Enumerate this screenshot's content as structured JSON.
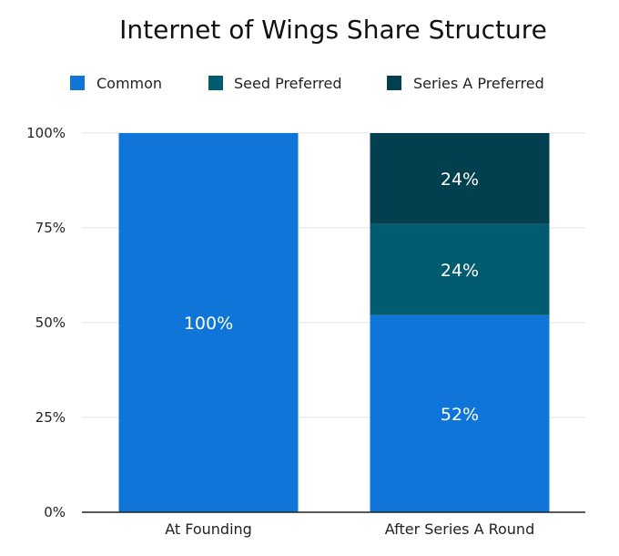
{
  "chart_data": {
    "type": "bar",
    "stacked": true,
    "title": "Internet of Wings Share Structure",
    "xlabel": "",
    "ylabel": "",
    "categories": [
      "At Founding",
      "After Series A Round"
    ],
    "series": [
      {
        "name": "Common",
        "color": "#0F75D8",
        "values": [
          100,
          52
        ],
        "labels": [
          "100%",
          "52%"
        ]
      },
      {
        "name": "Seed Preferred",
        "color": "#025B6F",
        "values": [
          0,
          24
        ],
        "labels": [
          "",
          "24%"
        ]
      },
      {
        "name": "Series A Preferred",
        "color": "#02404F",
        "values": [
          0,
          24
        ],
        "labels": [
          "",
          "24%"
        ]
      }
    ],
    "ylim": [
      0,
      100
    ],
    "yticks": [
      0,
      25,
      50,
      75,
      100
    ],
    "ytick_labels": [
      "0%",
      "25%",
      "50%",
      "75%",
      "100%"
    ],
    "grid": true,
    "legend_position": "top-left"
  }
}
